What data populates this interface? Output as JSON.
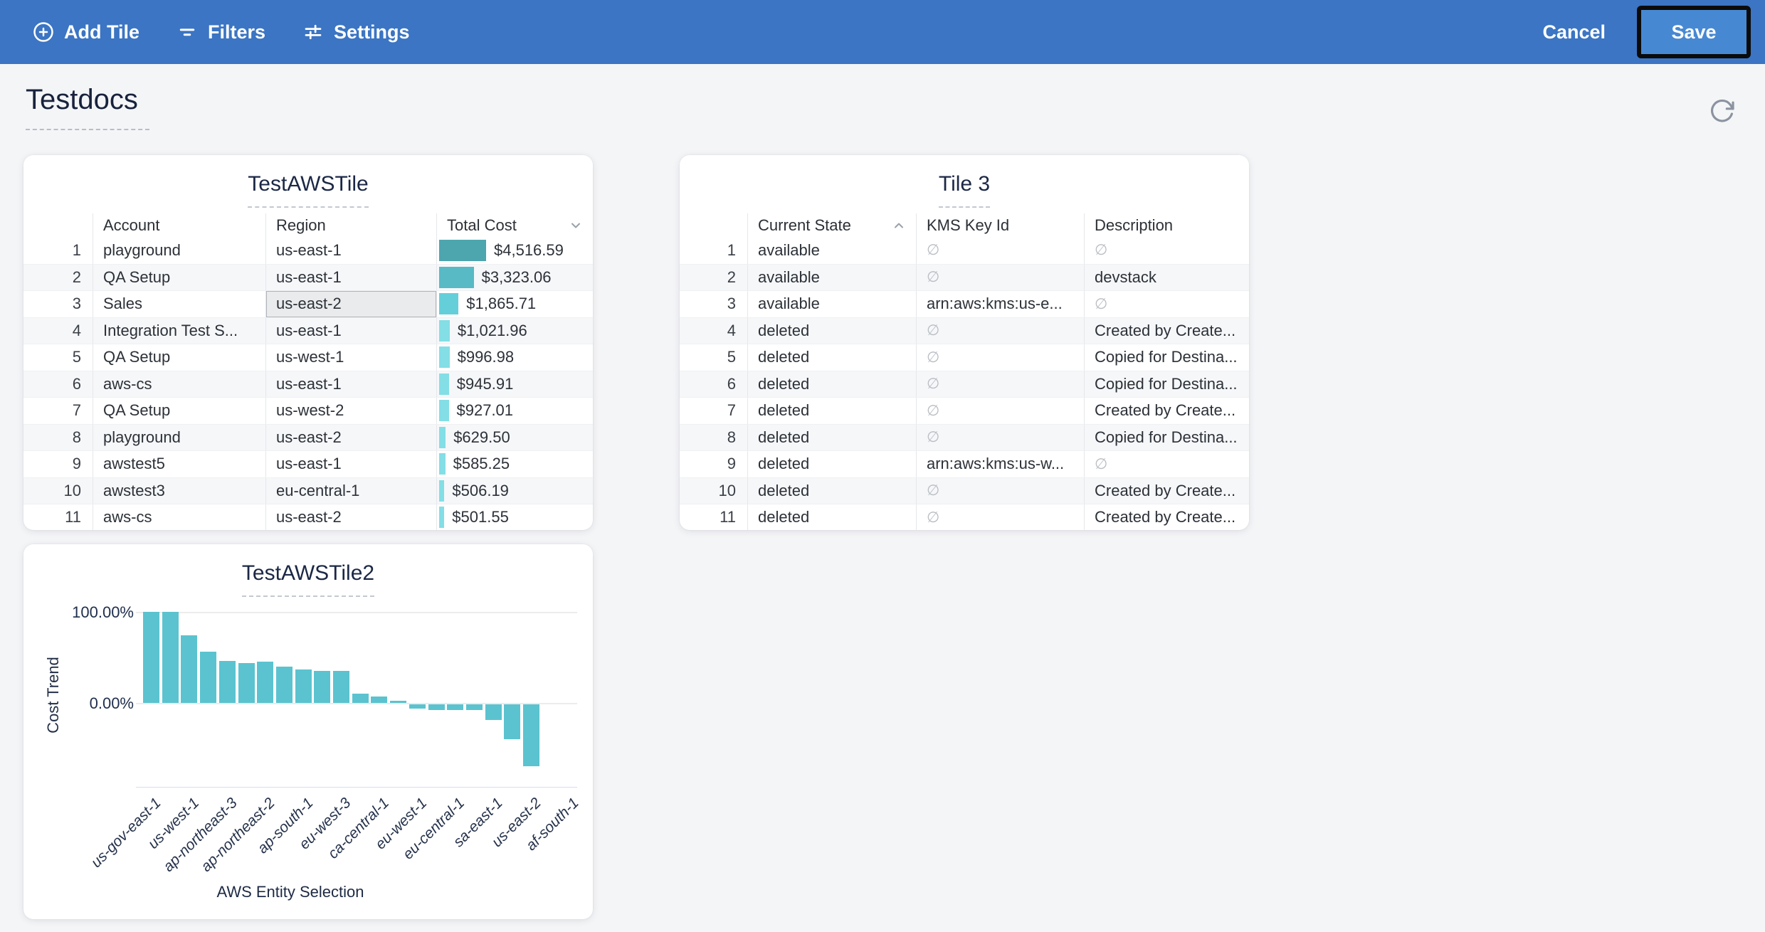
{
  "toolbar": {
    "add_tile_label": "Add Tile",
    "filters_label": "Filters",
    "settings_label": "Settings",
    "cancel_label": "Cancel",
    "save_label": "Save",
    "bar_color": "#3b75c3",
    "save_bg_color": "#4788d2"
  },
  "page": {
    "title": "Testdocs"
  },
  "icons": {
    "refresh": "refresh-icon",
    "null_symbol": "∅"
  },
  "tiles": {
    "testaws": {
      "title": "TestAWSTile",
      "columns": [
        "Account",
        "Region",
        "Total Cost"
      ],
      "sort": {
        "column": "Total Cost",
        "direction": "desc"
      },
      "rows": [
        {
          "num": 1,
          "account": "playground",
          "region": "us-east-1",
          "total_cost": "$4,516.59",
          "cost_value": 4516.59
        },
        {
          "num": 2,
          "account": "QA Setup",
          "region": "us-east-1",
          "total_cost": "$3,323.06",
          "cost_value": 3323.06
        },
        {
          "num": 3,
          "account": "Sales",
          "region": "us-east-2",
          "total_cost": "$1,865.71",
          "cost_value": 1865.71
        },
        {
          "num": 4,
          "account": "Integration Test S...",
          "region": "us-east-1",
          "total_cost": "$1,021.96",
          "cost_value": 1021.96
        },
        {
          "num": 5,
          "account": "QA Setup",
          "region": "us-west-1",
          "total_cost": "$996.98",
          "cost_value": 996.98
        },
        {
          "num": 6,
          "account": "aws-cs",
          "region": "us-east-1",
          "total_cost": "$945.91",
          "cost_value": 945.91
        },
        {
          "num": 7,
          "account": "QA Setup",
          "region": "us-west-2",
          "total_cost": "$927.01",
          "cost_value": 927.01
        },
        {
          "num": 8,
          "account": "playground",
          "region": "us-east-2",
          "total_cost": "$629.50",
          "cost_value": 629.5
        },
        {
          "num": 9,
          "account": "awstest5",
          "region": "us-east-1",
          "total_cost": "$585.25",
          "cost_value": 585.25
        },
        {
          "num": 10,
          "account": "awstest3",
          "region": "eu-central-1",
          "total_cost": "$506.19",
          "cost_value": 506.19
        },
        {
          "num": 11,
          "account": "aws-cs",
          "region": "us-east-2",
          "total_cost": "$501.55",
          "cost_value": 501.55
        }
      ],
      "selected_cell": {
        "row": 3,
        "column": "Region"
      },
      "bar_shades": [
        "#4da5ae",
        "#57bac5",
        "#65cfd9",
        "#83dee5"
      ]
    },
    "tile3": {
      "title": "Tile 3",
      "columns": [
        "Current State",
        "KMS Key Id",
        "Description"
      ],
      "sort": {
        "column": "Current State",
        "direction": "asc"
      },
      "rows": [
        {
          "num": 1,
          "current_state": "available",
          "kms_key_id": null,
          "description": null
        },
        {
          "num": 2,
          "current_state": "available",
          "kms_key_id": null,
          "description": "devstack"
        },
        {
          "num": 3,
          "current_state": "available",
          "kms_key_id": "arn:aws:kms:us-e...",
          "description": null
        },
        {
          "num": 4,
          "current_state": "deleted",
          "kms_key_id": null,
          "description": "Created by Create..."
        },
        {
          "num": 5,
          "current_state": "deleted",
          "kms_key_id": null,
          "description": "Copied for Destina..."
        },
        {
          "num": 6,
          "current_state": "deleted",
          "kms_key_id": null,
          "description": "Copied for Destina..."
        },
        {
          "num": 7,
          "current_state": "deleted",
          "kms_key_id": null,
          "description": "Created by Create..."
        },
        {
          "num": 8,
          "current_state": "deleted",
          "kms_key_id": null,
          "description": "Copied for Destina..."
        },
        {
          "num": 9,
          "current_state": "deleted",
          "kms_key_id": "arn:aws:kms:us-w...",
          "description": null
        },
        {
          "num": 10,
          "current_state": "deleted",
          "kms_key_id": null,
          "description": "Created by Create..."
        },
        {
          "num": 11,
          "current_state": "deleted",
          "kms_key_id": null,
          "description": "Created by Create..."
        }
      ]
    }
  },
  "chart_data": {
    "type": "bar",
    "title": "TestAWSTile2",
    "xlabel": "AWS Entity Selection",
    "ylabel": "Cost Trend",
    "y_tick_labels": [
      "100.00%",
      "0.00%"
    ],
    "ylim": [
      -70,
      100
    ],
    "grid": true,
    "bar_color": "#5bc3cf",
    "values_pct": [
      100,
      100,
      74,
      56,
      46,
      44,
      45,
      40,
      37,
      35,
      35,
      10,
      7,
      2,
      -5,
      -6,
      -6,
      -6,
      -17,
      -38,
      -68
    ],
    "x_labels": [
      "us-gov-east-1",
      "us-west-1",
      "ap-northeast-3",
      "ap-northeast-2",
      "ap-south-1",
      "eu-west-3",
      "ca-central-1",
      "eu-west-1",
      "eu-central-1",
      "sa-east-1",
      "us-east-2",
      "af-south-1"
    ]
  }
}
